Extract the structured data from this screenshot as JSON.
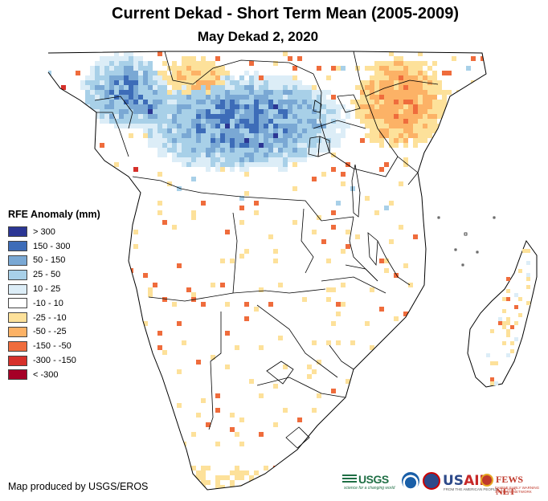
{
  "map": {
    "title": "Current Dekad - Short Term Mean (2005-2009)",
    "subtitle": "May Dekad 2, 2020",
    "region": "Southern and Central Africa"
  },
  "legend": {
    "title": "RFE Anomaly (mm)",
    "items": [
      {
        "label": "> 300",
        "color": "#2b3694"
      },
      {
        "label": "150 - 300",
        "color": "#3d6cb8"
      },
      {
        "label": "50 - 150",
        "color": "#7aa8d4"
      },
      {
        "label": "25 - 50",
        "color": "#a8d0e8"
      },
      {
        "label": "10 - 25",
        "color": "#dcedf7"
      },
      {
        "label": "-10 - 10",
        "color": "#ffffff"
      },
      {
        "label": "-25 - -10",
        "color": "#fde19a"
      },
      {
        "label": "-50 - -25",
        "color": "#fcb266"
      },
      {
        "label": "-150 - -50",
        "color": "#ef6c3c"
      },
      {
        "label": "-300 - -150",
        "color": "#d6302a"
      },
      {
        "label": "< -300",
        "color": "#a50026"
      }
    ]
  },
  "credit": "Map produced by USGS/EROS",
  "logos": {
    "usgs": "USGS",
    "usgs_tagline": "science for a changing world",
    "usaid_prefix": "US",
    "usaid_suffix": "AID",
    "usaid_tagline": "FROM THE AMERICAN PEOPLE",
    "fews": "FEWS NET",
    "fews_tagline": "FAMINE EARLY WARNING SYSTEMS NETWORK"
  },
  "colors": {
    "border": "#000000",
    "land": "#ffffff"
  }
}
